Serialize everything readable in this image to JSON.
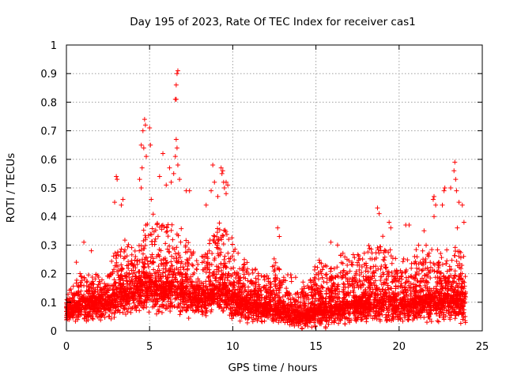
{
  "chart_data": {
    "type": "scatter",
    "title": "Day 195 of 2023, Rate Of TEC Index for receiver cas1",
    "xlabel": "GPS time / hours",
    "ylabel": "ROTI / TECUs",
    "xlim": [
      0,
      25
    ],
    "ylim": [
      0,
      1
    ],
    "x_ticks": [
      "0",
      "5",
      "10",
      "15",
      "20",
      "25"
    ],
    "y_ticks": [
      "0",
      "0.1",
      "0.2",
      "0.3",
      "0.4",
      "0.5",
      "0.6",
      "0.7",
      "0.8",
      "0.9",
      "1"
    ],
    "grid": true,
    "marker": "plus",
    "color": "#ff0000",
    "envelope": {
      "hours": [
        0,
        0.5,
        1,
        1.5,
        2,
        2.5,
        3,
        3.5,
        4,
        4.5,
        5,
        5.5,
        6,
        6.5,
        7,
        7.5,
        8,
        8.5,
        9,
        9.5,
        10,
        10.5,
        11,
        11.5,
        12,
        12.5,
        13,
        13.5,
        14,
        14.5,
        15,
        15.5,
        16,
        16.5,
        17,
        17.5,
        18,
        18.5,
        19,
        19.5,
        20,
        20.5,
        21,
        21.5,
        22,
        22.5,
        23,
        23.5,
        24
      ],
      "typical_max": [
        0.12,
        0.18,
        0.22,
        0.2,
        0.2,
        0.22,
        0.3,
        0.32,
        0.33,
        0.36,
        0.42,
        0.4,
        0.38,
        0.42,
        0.36,
        0.3,
        0.25,
        0.32,
        0.38,
        0.4,
        0.32,
        0.26,
        0.24,
        0.22,
        0.22,
        0.26,
        0.22,
        0.2,
        0.18,
        0.17,
        0.26,
        0.24,
        0.22,
        0.28,
        0.3,
        0.28,
        0.3,
        0.32,
        0.36,
        0.3,
        0.26,
        0.28,
        0.3,
        0.3,
        0.32,
        0.3,
        0.28,
        0.3,
        0.3
      ],
      "typical_min": [
        0.03,
        0.03,
        0.03,
        0.03,
        0.03,
        0.04,
        0.04,
        0.05,
        0.05,
        0.06,
        0.06,
        0.06,
        0.06,
        0.06,
        0.05,
        0.05,
        0.05,
        0.05,
        0.05,
        0.05,
        0.04,
        0.04,
        0.03,
        0.03,
        0.03,
        0.02,
        0.02,
        0.01,
        0.01,
        0.01,
        0.01,
        0.01,
        0.02,
        0.02,
        0.02,
        0.03,
        0.03,
        0.03,
        0.03,
        0.03,
        0.03,
        0.03,
        0.03,
        0.03,
        0.03,
        0.03,
        0.03,
        0.03,
        0.03
      ],
      "median": [
        0.07,
        0.09,
        0.1,
        0.1,
        0.1,
        0.11,
        0.13,
        0.14,
        0.15,
        0.16,
        0.17,
        0.17,
        0.16,
        0.17,
        0.15,
        0.13,
        0.12,
        0.13,
        0.15,
        0.16,
        0.13,
        0.11,
        0.1,
        0.09,
        0.09,
        0.09,
        0.08,
        0.07,
        0.06,
        0.06,
        0.08,
        0.08,
        0.08,
        0.09,
        0.1,
        0.1,
        0.11,
        0.11,
        0.12,
        0.11,
        0.1,
        0.1,
        0.11,
        0.11,
        0.12,
        0.12,
        0.12,
        0.12,
        0.12
      ]
    },
    "outliers": [
      {
        "x": 0.6,
        "y": 0.24
      },
      {
        "x": 1.05,
        "y": 0.31
      },
      {
        "x": 1.5,
        "y": 0.28
      },
      {
        "x": 2.9,
        "y": 0.45
      },
      {
        "x": 3.0,
        "y": 0.54
      },
      {
        "x": 3.05,
        "y": 0.53
      },
      {
        "x": 3.3,
        "y": 0.44
      },
      {
        "x": 3.4,
        "y": 0.46
      },
      {
        "x": 4.5,
        "y": 0.65
      },
      {
        "x": 4.55,
        "y": 0.57
      },
      {
        "x": 4.6,
        "y": 0.7
      },
      {
        "x": 4.7,
        "y": 0.74
      },
      {
        "x": 4.75,
        "y": 0.72
      },
      {
        "x": 4.65,
        "y": 0.64
      },
      {
        "x": 4.8,
        "y": 0.61
      },
      {
        "x": 4.5,
        "y": 0.5
      },
      {
        "x": 5.0,
        "y": 0.71
      },
      {
        "x": 5.05,
        "y": 0.65
      },
      {
        "x": 4.4,
        "y": 0.53
      },
      {
        "x": 5.1,
        "y": 0.46
      },
      {
        "x": 5.6,
        "y": 0.54
      },
      {
        "x": 5.8,
        "y": 0.62
      },
      {
        "x": 6.0,
        "y": 0.51
      },
      {
        "x": 6.2,
        "y": 0.57
      },
      {
        "x": 6.3,
        "y": 0.52
      },
      {
        "x": 6.45,
        "y": 0.55
      },
      {
        "x": 6.55,
        "y": 0.61
      },
      {
        "x": 6.6,
        "y": 0.67
      },
      {
        "x": 6.65,
        "y": 0.64
      },
      {
        "x": 6.55,
        "y": 0.81
      },
      {
        "x": 6.6,
        "y": 0.81
      },
      {
        "x": 6.6,
        "y": 0.86
      },
      {
        "x": 6.65,
        "y": 0.9
      },
      {
        "x": 6.7,
        "y": 0.91
      },
      {
        "x": 6.7,
        "y": 0.58
      },
      {
        "x": 6.8,
        "y": 0.53
      },
      {
        "x": 7.2,
        "y": 0.49
      },
      {
        "x": 7.4,
        "y": 0.49
      },
      {
        "x": 8.4,
        "y": 0.44
      },
      {
        "x": 8.8,
        "y": 0.58
      },
      {
        "x": 8.9,
        "y": 0.52
      },
      {
        "x": 8.7,
        "y": 0.49
      },
      {
        "x": 9.1,
        "y": 0.47
      },
      {
        "x": 9.3,
        "y": 0.57
      },
      {
        "x": 9.35,
        "y": 0.55
      },
      {
        "x": 9.4,
        "y": 0.56
      },
      {
        "x": 9.45,
        "y": 0.52
      },
      {
        "x": 9.5,
        "y": 0.5
      },
      {
        "x": 9.6,
        "y": 0.52
      },
      {
        "x": 9.7,
        "y": 0.51
      },
      {
        "x": 9.6,
        "y": 0.48
      },
      {
        "x": 12.7,
        "y": 0.36
      },
      {
        "x": 12.8,
        "y": 0.33
      },
      {
        "x": 15.9,
        "y": 0.31
      },
      {
        "x": 16.3,
        "y": 0.3
      },
      {
        "x": 18.7,
        "y": 0.43
      },
      {
        "x": 18.8,
        "y": 0.41
      },
      {
        "x": 19.4,
        "y": 0.38
      },
      {
        "x": 19.5,
        "y": 0.36
      },
      {
        "x": 20.4,
        "y": 0.37
      },
      {
        "x": 20.6,
        "y": 0.37
      },
      {
        "x": 21.5,
        "y": 0.35
      },
      {
        "x": 22.05,
        "y": 0.46
      },
      {
        "x": 22.1,
        "y": 0.47
      },
      {
        "x": 22.2,
        "y": 0.44
      },
      {
        "x": 22.1,
        "y": 0.4
      },
      {
        "x": 22.7,
        "y": 0.49
      },
      {
        "x": 22.75,
        "y": 0.5
      },
      {
        "x": 22.6,
        "y": 0.44
      },
      {
        "x": 23.1,
        "y": 0.5
      },
      {
        "x": 23.3,
        "y": 0.56
      },
      {
        "x": 23.35,
        "y": 0.59
      },
      {
        "x": 23.4,
        "y": 0.53
      },
      {
        "x": 23.45,
        "y": 0.49
      },
      {
        "x": 23.6,
        "y": 0.45
      },
      {
        "x": 23.8,
        "y": 0.44
      },
      {
        "x": 23.9,
        "y": 0.38
      },
      {
        "x": 23.5,
        "y": 0.36
      }
    ]
  }
}
